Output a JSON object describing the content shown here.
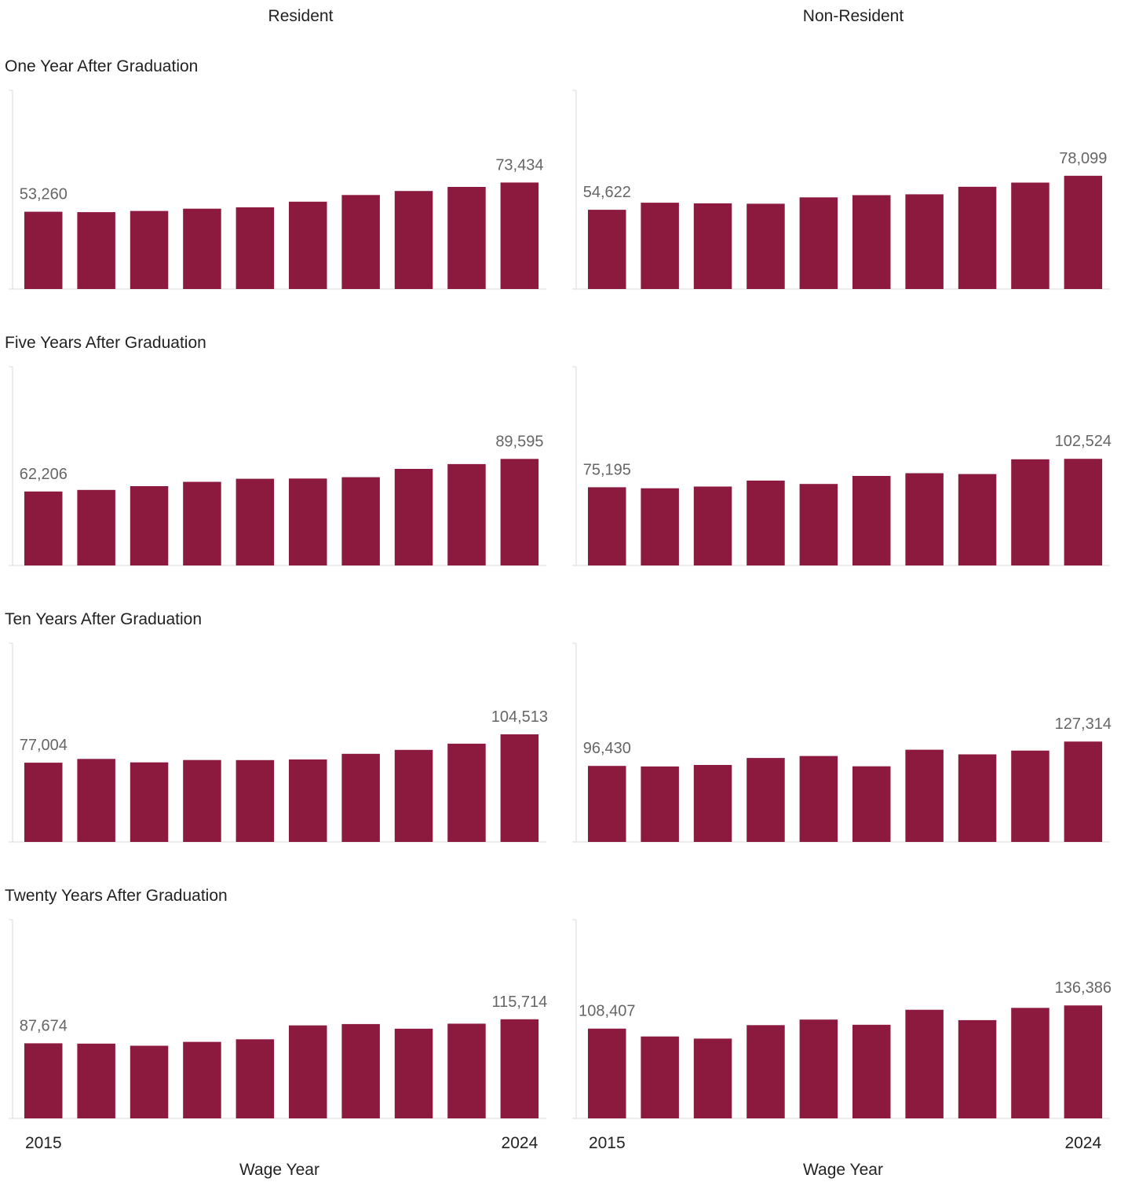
{
  "chart_data": {
    "type": "bar",
    "columns": [
      "Resident",
      "Non-Resident"
    ],
    "rows": [
      "One Year After Graduation",
      "Five Years After Graduation",
      "Ten Years After Graduation",
      "Twenty Years After Graduation"
    ],
    "xlabel": "Wage Year",
    "x": [
      2015,
      2016,
      2017,
      2018,
      2019,
      2020,
      2021,
      2022,
      2023,
      2024
    ],
    "x_tick_labels": [
      "2015",
      "2024"
    ],
    "bar_color": "#8b1a3e",
    "axis_color": "#d9d9d9",
    "label_color": "#666666",
    "panels": [
      {
        "row": "One Year After Graduation",
        "column": "Resident",
        "ylim": [
          0,
          137000
        ],
        "values": [
          53260,
          53000,
          53800,
          55400,
          56300,
          60200,
          64800,
          67600,
          70400,
          73434
        ],
        "labels": [
          {
            "index": 0,
            "text": "53,260"
          },
          {
            "index": 9,
            "text": "73,434"
          }
        ]
      },
      {
        "row": "One Year After Graduation",
        "column": "Non-Resident",
        "ylim": [
          0,
          137000
        ],
        "values": [
          54622,
          59500,
          59100,
          58800,
          63200,
          64700,
          65300,
          70500,
          73400,
          78099
        ],
        "labels": [
          {
            "index": 0,
            "text": "54,622"
          },
          {
            "index": 9,
            "text": "78,099"
          }
        ]
      },
      {
        "row": "Five Years After Graduation",
        "column": "Resident",
        "ylim": [
          0,
          167000
        ],
        "values": [
          62206,
          63500,
          66700,
          70300,
          72900,
          73100,
          74200,
          81200,
          85200,
          89595
        ],
        "labels": [
          {
            "index": 0,
            "text": "62,206"
          },
          {
            "index": 9,
            "text": "89,595"
          }
        ]
      },
      {
        "row": "Five Years After Graduation",
        "column": "Non-Resident",
        "ylim": [
          0,
          191000
        ],
        "values": [
          75195,
          74200,
          75900,
          81600,
          78400,
          86100,
          88700,
          87900,
          102100,
          102524
        ],
        "labels": [
          {
            "index": 0,
            "text": "75,195"
          },
          {
            "index": 9,
            "text": "102,524"
          }
        ]
      },
      {
        "row": "Ten Years After Graduation",
        "column": "Resident",
        "ylim": [
          0,
          193000
        ],
        "values": [
          77004,
          80600,
          77300,
          79600,
          79500,
          80100,
          85600,
          89400,
          95400,
          104513
        ],
        "labels": [
          {
            "index": 0,
            "text": "77,004"
          },
          {
            "index": 9,
            "text": "104,513"
          }
        ]
      },
      {
        "row": "Ten Years After Graduation",
        "column": "Non-Resident",
        "ylim": [
          0,
          252000
        ],
        "values": [
          96430,
          95700,
          97600,
          106500,
          109000,
          95900,
          116900,
          111100,
          115800,
          127314
        ],
        "labels": [
          {
            "index": 0,
            "text": "96,430"
          },
          {
            "index": 9,
            "text": "127,314"
          }
        ]
      },
      {
        "row": "Twenty Years After Graduation",
        "column": "Resident",
        "ylim": [
          0,
          232000
        ],
        "values": [
          87674,
          87300,
          84800,
          89300,
          92300,
          108600,
          110100,
          104700,
          110600,
          115714
        ],
        "labels": [
          {
            "index": 0,
            "text": "87,674"
          },
          {
            "index": 9,
            "text": "115,714"
          }
        ]
      },
      {
        "row": "Twenty Years After Graduation",
        "column": "Non-Resident",
        "ylim": [
          0,
          240000
        ],
        "values": [
          108407,
          98900,
          96400,
          112600,
          119300,
          113100,
          131200,
          118700,
          133500,
          136386
        ],
        "labels": [
          {
            "index": 0,
            "text": "108,407"
          },
          {
            "index": 9,
            "text": "136,386"
          }
        ]
      }
    ]
  }
}
